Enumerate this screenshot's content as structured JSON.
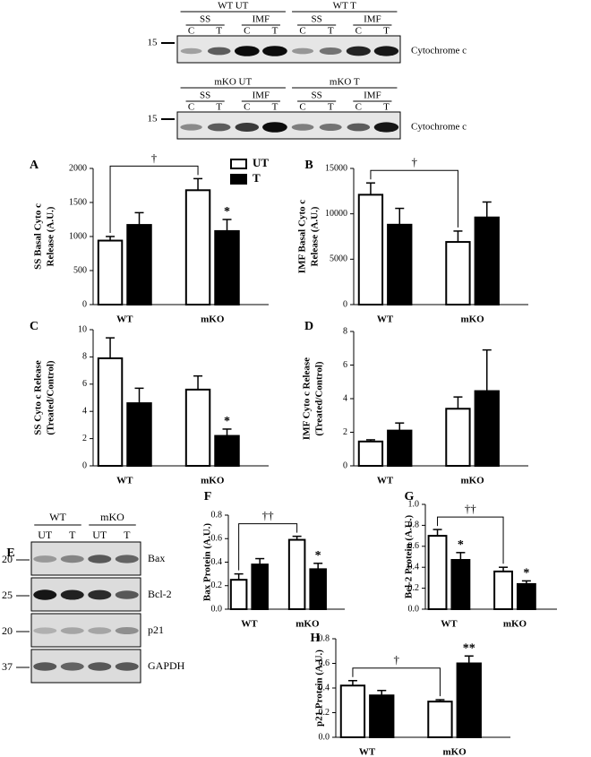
{
  "figure": {
    "blot_top": {
      "groups": [
        "WT UT",
        "WT T"
      ],
      "fractions": [
        "SS",
        "IMF",
        "SS",
        "IMF"
      ],
      "lanes": [
        "C",
        "T",
        "C",
        "T",
        "C",
        "T",
        "C",
        "T"
      ],
      "marker": "15",
      "label": "Cytochrome c"
    },
    "blot_middle": {
      "groups": [
        "mKO UT",
        "mKO T"
      ],
      "fractions": [
        "SS",
        "IMF",
        "SS",
        "IMF"
      ],
      "lanes": [
        "C",
        "T",
        "C",
        "T",
        "C",
        "T",
        "C",
        "T"
      ],
      "marker": "15",
      "label": "Cytochrome c"
    },
    "blot_E": {
      "panel": "E",
      "groups": [
        "WT",
        "mKO"
      ],
      "lanes": [
        "UT",
        "T",
        "UT",
        "T"
      ],
      "rows": [
        {
          "marker": "20",
          "label": "Bax"
        },
        {
          "marker": "25",
          "label": "Bcl-2"
        },
        {
          "marker": "20",
          "label": "p21"
        },
        {
          "marker": "37",
          "label": "GAPDH"
        }
      ]
    }
  },
  "chart_data": [
    {
      "type": "bar",
      "panel": "A",
      "ylabel": [
        "SS Basal Cyto c",
        "Release (A.U.)"
      ],
      "categories": [
        "WT",
        "mKO"
      ],
      "series": [
        {
          "name": "UT",
          "color": "#ffffff",
          "values": [
            940,
            1680
          ],
          "errors": [
            60,
            170
          ]
        },
        {
          "name": "T",
          "color": "#000000",
          "values": [
            1170,
            1080
          ],
          "errors": [
            180,
            170
          ],
          "significance": [
            null,
            "*"
          ]
        }
      ],
      "bracket": "†",
      "legend": true,
      "ylim": [
        0,
        2000
      ],
      "yticks": [
        0,
        500,
        1000,
        1500,
        2000
      ]
    },
    {
      "type": "bar",
      "panel": "B",
      "ylabel": [
        "IMF Basal Cyto c",
        "Release (A.U.)"
      ],
      "categories": [
        "WT",
        "mKO"
      ],
      "series": [
        {
          "color": "#ffffff",
          "values": [
            12100,
            6900
          ],
          "errors": [
            1300,
            1200
          ]
        },
        {
          "color": "#000000",
          "values": [
            8800,
            9600
          ],
          "errors": [
            1800,
            1700
          ]
        }
      ],
      "bracket": "†",
      "ylim": [
        0,
        15000
      ],
      "yticks": [
        0,
        5000,
        10000,
        15000
      ]
    },
    {
      "type": "bar",
      "panel": "C",
      "ylabel": [
        "SS Cyto c Release",
        "(Treated/Control)"
      ],
      "categories": [
        "WT",
        "mKO"
      ],
      "series": [
        {
          "color": "#ffffff",
          "values": [
            7.9,
            5.6
          ],
          "errors": [
            1.5,
            1.0
          ]
        },
        {
          "color": "#000000",
          "values": [
            4.6,
            2.2
          ],
          "errors": [
            1.1,
            0.5
          ],
          "significance": [
            null,
            "*"
          ]
        }
      ],
      "ylim": [
        0,
        10
      ],
      "yticks": [
        0,
        2,
        4,
        6,
        8,
        10
      ]
    },
    {
      "type": "bar",
      "panel": "D",
      "ylabel": [
        "IMF Cyto c Release",
        "(Treated/Control)"
      ],
      "categories": [
        "WT",
        "mKO"
      ],
      "series": [
        {
          "color": "#ffffff",
          "values": [
            1.45,
            3.4
          ],
          "errors": [
            0.1,
            0.7
          ]
        },
        {
          "color": "#000000",
          "values": [
            2.1,
            4.45
          ],
          "errors": [
            0.45,
            2.45
          ]
        }
      ],
      "ylim": [
        0,
        8
      ],
      "yticks": [
        0,
        2,
        4,
        6,
        8
      ]
    },
    {
      "type": "bar",
      "panel": "F",
      "ylabel": [
        "Bax Protein (A.U.)"
      ],
      "categories": [
        "WT",
        "mKO"
      ],
      "series": [
        {
          "color": "#ffffff",
          "values": [
            0.25,
            0.59
          ],
          "errors": [
            0.05,
            0.03
          ]
        },
        {
          "color": "#000000",
          "values": [
            0.38,
            0.34
          ],
          "errors": [
            0.05,
            0.05
          ],
          "significance": [
            null,
            "*"
          ]
        }
      ],
      "bracket": "††",
      "ylim": [
        0,
        0.8
      ],
      "yticks": [
        {
          "value": 0,
          "label": "0.0"
        },
        0.2,
        0.4,
        0.6,
        0.8
      ]
    },
    {
      "type": "bar",
      "panel": "G",
      "ylabel": [
        "Bcl-2 Protein (A.U.)"
      ],
      "categories": [
        "WT",
        "mKO"
      ],
      "series": [
        {
          "color": "#ffffff",
          "values": [
            0.7,
            0.36
          ],
          "errors": [
            0.06,
            0.04
          ]
        },
        {
          "color": "#000000",
          "values": [
            0.47,
            0.24
          ],
          "errors": [
            0.07,
            0.03
          ],
          "significance": [
            "*",
            "*"
          ]
        }
      ],
      "bracket": "††",
      "ylim": [
        0,
        1.0
      ],
      "yticks": [
        {
          "value": 0,
          "label": "0.0"
        },
        0.2,
        0.4,
        0.6,
        0.8,
        {
          "value": 1.0,
          "label": "1.0"
        }
      ]
    },
    {
      "type": "bar",
      "panel": "H",
      "ylabel": [
        "p21 Protein (A.U.)"
      ],
      "categories": [
        "WT",
        "mKO"
      ],
      "series": [
        {
          "color": "#ffffff",
          "values": [
            0.42,
            0.29
          ],
          "errors": [
            0.04,
            0.015
          ]
        },
        {
          "color": "#000000",
          "values": [
            0.34,
            0.6
          ],
          "errors": [
            0.04,
            0.06
          ],
          "significance": [
            null,
            "**"
          ]
        }
      ],
      "bracket": "†",
      "ylim": [
        0,
        0.8
      ],
      "yticks": [
        {
          "value": 0,
          "label": "0.0"
        },
        0.2,
        0.4,
        0.6,
        0.8
      ]
    }
  ]
}
